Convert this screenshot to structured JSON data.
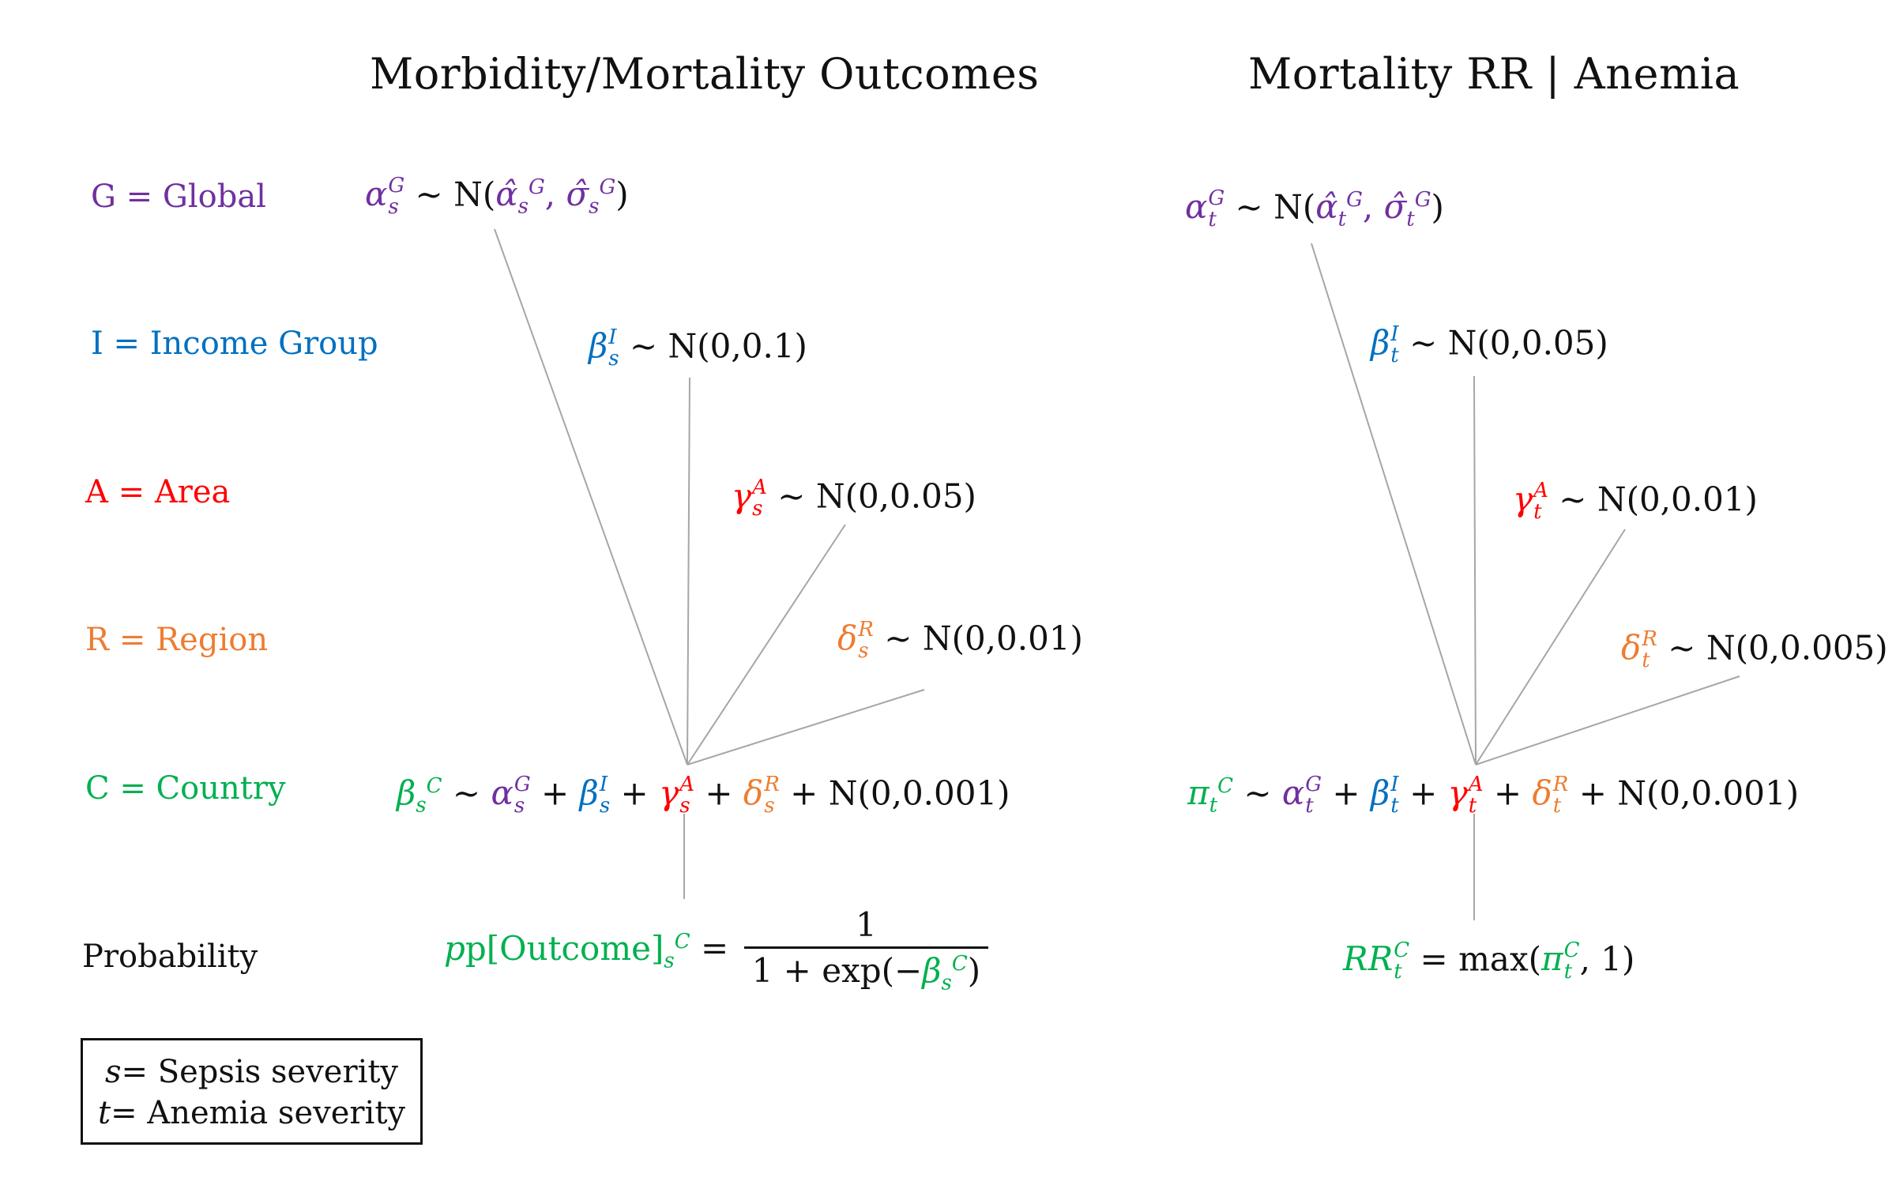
{
  "colors": {
    "global": "#7030A0",
    "income": "#0070C0",
    "area": "#FF0000",
    "region": "#ED7D31",
    "country": "#00B050",
    "text": "#111111",
    "line": "#A6A6A6"
  },
  "titles": {
    "left": "Morbidity/Mortality Outcomes",
    "right": "Mortality RR | Anemia"
  },
  "levels": [
    {
      "key": "global",
      "label": "G = Global"
    },
    {
      "key": "income",
      "label": "I = Income Group"
    },
    {
      "key": "area",
      "label": "A = Area"
    },
    {
      "key": "region",
      "label": "R = Region"
    },
    {
      "key": "country",
      "label": "C = Country"
    },
    {
      "key": "probability",
      "label": "Probability"
    }
  ],
  "left": {
    "index": "s",
    "global_prior": "N",
    "income_prior": "N(0,0.1)",
    "area_prior": "N(0,0.05)",
    "region_prior": "N(0,0.01)",
    "country_noise": "N(0,0.001)",
    "outcome_word": "p[Outcome]",
    "numerator": "1",
    "denominator_prefix": "1 + exp"
  },
  "right": {
    "index": "t",
    "global_prior": "N",
    "income_prior": "N(0,0.05)",
    "area_prior": "N(0,0.01)",
    "region_prior": "N(0,0.005)",
    "country_noise": "N(0,0.001)",
    "rr_word": "RR",
    "max_word": "max",
    "max_arg": "1"
  },
  "legend": {
    "s_line": "= Sepsis severity",
    "t_line": "= Anemia severity"
  }
}
